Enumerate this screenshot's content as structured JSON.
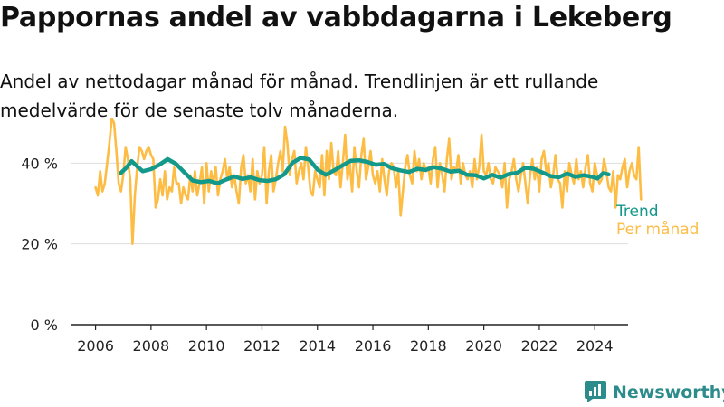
{
  "title": "Pappornas andel av vabbdagarna i Lekeberg",
  "subtitle": "Andel av nettodagar månad för månad. Trendlinjen är ett rullande medelvärde för de senaste tolv månaderna.",
  "brand": {
    "name": "Newsworthy",
    "color": "#2c8b8b",
    "icon": "newsworthy-logo-icon"
  },
  "colors": {
    "monthly": "#fdbd45",
    "trend": "#13998a",
    "grid": "#dddddd",
    "axis": "#222222"
  },
  "chart_data": {
    "type": "line",
    "title": "Pappornas andel av vabbdagarna i Lekeberg",
    "subtitle": "Andel av nettodagar månad för månad. Trendlinjen är ett rullande medelvärde för de senaste tolv månaderna.",
    "xlabel": "",
    "ylabel": "",
    "xlim": [
      2005.1,
      2025.2
    ],
    "ylim": [
      0,
      45
    ],
    "y_ticks": [
      0,
      20,
      40
    ],
    "y_tick_labels": [
      "0 %",
      "20 %",
      "40 %"
    ],
    "x_ticks": [
      2006,
      2008,
      2010,
      2012,
      2014,
      2016,
      2018,
      2020,
      2022,
      2024
    ],
    "x_tick_labels": [
      "2006",
      "2008",
      "2010",
      "2012",
      "2014",
      "2016",
      "2018",
      "2020",
      "2022",
      "2024"
    ],
    "grid": "horizontal",
    "legend": "right, at line ends",
    "series": [
      {
        "name": "Per månad",
        "x_start": 2006.0,
        "x_step": 0.08333,
        "values": [
          34,
          32,
          38,
          33,
          35,
          40,
          45,
          51,
          50,
          43,
          35,
          33,
          37,
          44,
          41,
          36,
          20,
          32,
          39,
          44,
          43,
          41,
          43,
          44,
          42,
          41,
          29,
          31,
          36,
          32,
          38,
          31,
          34,
          33,
          39,
          35,
          35,
          30,
          34,
          32,
          31,
          37,
          33,
          38,
          32,
          35,
          39,
          30,
          40,
          33,
          38,
          35,
          39,
          32,
          36,
          38,
          41,
          36,
          39,
          34,
          37,
          33,
          30,
          39,
          42,
          35,
          37,
          33,
          41,
          31,
          38,
          35,
          37,
          44,
          30,
          38,
          42,
          33,
          36,
          40,
          43,
          38,
          49,
          45,
          37,
          41,
          43,
          35,
          38,
          40,
          36,
          44,
          39,
          33,
          32,
          38,
          36,
          34,
          42,
          32,
          43,
          36,
          45,
          38,
          37,
          43,
          34,
          40,
          47,
          36,
          40,
          33,
          44,
          38,
          34,
          42,
          46,
          36,
          39,
          43,
          37,
          35,
          38,
          33,
          41,
          36,
          32,
          38,
          40,
          39,
          34,
          38,
          27,
          33,
          39,
          42,
          37,
          35,
          43,
          38,
          41,
          36,
          40,
          38,
          39,
          35,
          41,
          44,
          34,
          40,
          37,
          33,
          41,
          46,
          36,
          39,
          38,
          42,
          35,
          40,
          37,
          36,
          38,
          34,
          41,
          36,
          39,
          47,
          38,
          37,
          40,
          36,
          35,
          39,
          38,
          37,
          34,
          40,
          29,
          36,
          38,
          41,
          36,
          33,
          37,
          40,
          35,
          30,
          37,
          41,
          36,
          39,
          33,
          41,
          43,
          38,
          40,
          34,
          37,
          42,
          36,
          35,
          29,
          38,
          33,
          40,
          37,
          35,
          41,
          36,
          38,
          34,
          39,
          42,
          35,
          33,
          40,
          37,
          35,
          36,
          41,
          38,
          34,
          33,
          38,
          29,
          37,
          36,
          39,
          41,
          34,
          38,
          40,
          37,
          36,
          44,
          31
        ]
      },
      {
        "name": "Trend",
        "points": [
          [
            2006.9,
            37.5
          ],
          [
            2007.1,
            38.8
          ],
          [
            2007.3,
            40.5
          ],
          [
            2007.5,
            39.2
          ],
          [
            2007.7,
            38.0
          ],
          [
            2008.0,
            38.5
          ],
          [
            2008.3,
            39.6
          ],
          [
            2008.6,
            41.0
          ],
          [
            2008.9,
            39.8
          ],
          [
            2009.2,
            37.7
          ],
          [
            2009.5,
            35.7
          ],
          [
            2009.8,
            35.3
          ],
          [
            2010.1,
            35.6
          ],
          [
            2010.4,
            35.0
          ],
          [
            2010.7,
            35.9
          ],
          [
            2011.0,
            36.7
          ],
          [
            2011.3,
            36.1
          ],
          [
            2011.6,
            36.5
          ],
          [
            2011.9,
            35.8
          ],
          [
            2012.2,
            35.6
          ],
          [
            2012.5,
            36.0
          ],
          [
            2012.8,
            37.2
          ],
          [
            2013.1,
            40.1
          ],
          [
            2013.4,
            41.3
          ],
          [
            2013.7,
            40.9
          ],
          [
            2014.0,
            38.4
          ],
          [
            2014.3,
            37.1
          ],
          [
            2014.6,
            38.2
          ],
          [
            2014.9,
            39.4
          ],
          [
            2015.2,
            40.6
          ],
          [
            2015.5,
            40.7
          ],
          [
            2015.8,
            40.3
          ],
          [
            2016.1,
            39.6
          ],
          [
            2016.4,
            39.8
          ],
          [
            2016.7,
            38.7
          ],
          [
            2017.0,
            38.2
          ],
          [
            2017.3,
            37.8
          ],
          [
            2017.6,
            38.6
          ],
          [
            2017.9,
            38.3
          ],
          [
            2018.2,
            39.0
          ],
          [
            2018.5,
            38.6
          ],
          [
            2018.8,
            37.9
          ],
          [
            2019.1,
            38.1
          ],
          [
            2019.4,
            37.1
          ],
          [
            2019.7,
            37.0
          ],
          [
            2020.0,
            36.2
          ],
          [
            2020.3,
            37.1
          ],
          [
            2020.6,
            36.4
          ],
          [
            2020.9,
            37.3
          ],
          [
            2021.2,
            37.6
          ],
          [
            2021.5,
            38.9
          ],
          [
            2021.8,
            38.6
          ],
          [
            2022.1,
            37.7
          ],
          [
            2022.4,
            36.8
          ],
          [
            2022.7,
            36.5
          ],
          [
            2023.0,
            37.4
          ],
          [
            2023.3,
            36.6
          ],
          [
            2023.6,
            37.0
          ],
          [
            2023.9,
            36.6
          ],
          [
            2024.1,
            36.2
          ],
          [
            2024.3,
            37.5
          ],
          [
            2024.5,
            37.2
          ]
        ]
      }
    ]
  }
}
